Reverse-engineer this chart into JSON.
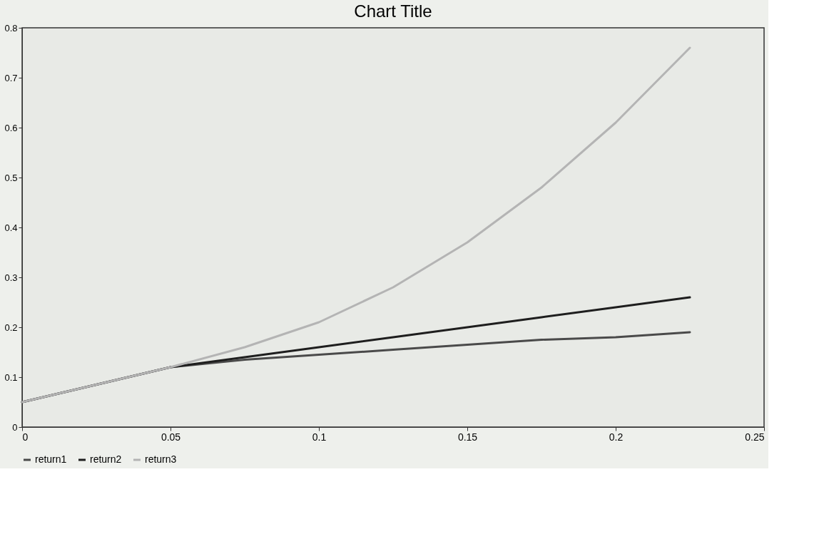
{
  "chart_data": {
    "type": "line",
    "title": "Chart Title",
    "x": [
      0,
      0.025,
      0.05,
      0.075,
      0.1,
      0.125,
      0.15,
      0.175,
      0.2,
      0.225
    ],
    "series": [
      {
        "name": "return1",
        "color": "#4a4a4a",
        "values": [
          0.05,
          0.085,
          0.12,
          0.135,
          0.145,
          0.155,
          0.165,
          0.175,
          0.18,
          0.19
        ]
      },
      {
        "name": "return2",
        "color": "#1e1e1e",
        "values": [
          0.05,
          0.085,
          0.12,
          0.14,
          0.16,
          0.18,
          0.2,
          0.22,
          0.24,
          0.26
        ]
      },
      {
        "name": "return3",
        "color": "#b4b4b4",
        "values": [
          0.05,
          0.085,
          0.12,
          0.16,
          0.21,
          0.28,
          0.37,
          0.48,
          0.61,
          0.76
        ]
      }
    ],
    "xlim": [
      0,
      0.25
    ],
    "xticks": [
      0,
      0.05,
      0.1,
      0.15,
      0.2,
      0.25
    ],
    "ylim": [
      0,
      0.8
    ],
    "yticks": [
      0,
      0.1,
      0.2,
      0.3,
      0.4,
      0.5,
      0.6,
      0.7,
      0.8
    ],
    "grid": false,
    "legend": "bottom",
    "marker": "none",
    "line_style": "solid"
  }
}
